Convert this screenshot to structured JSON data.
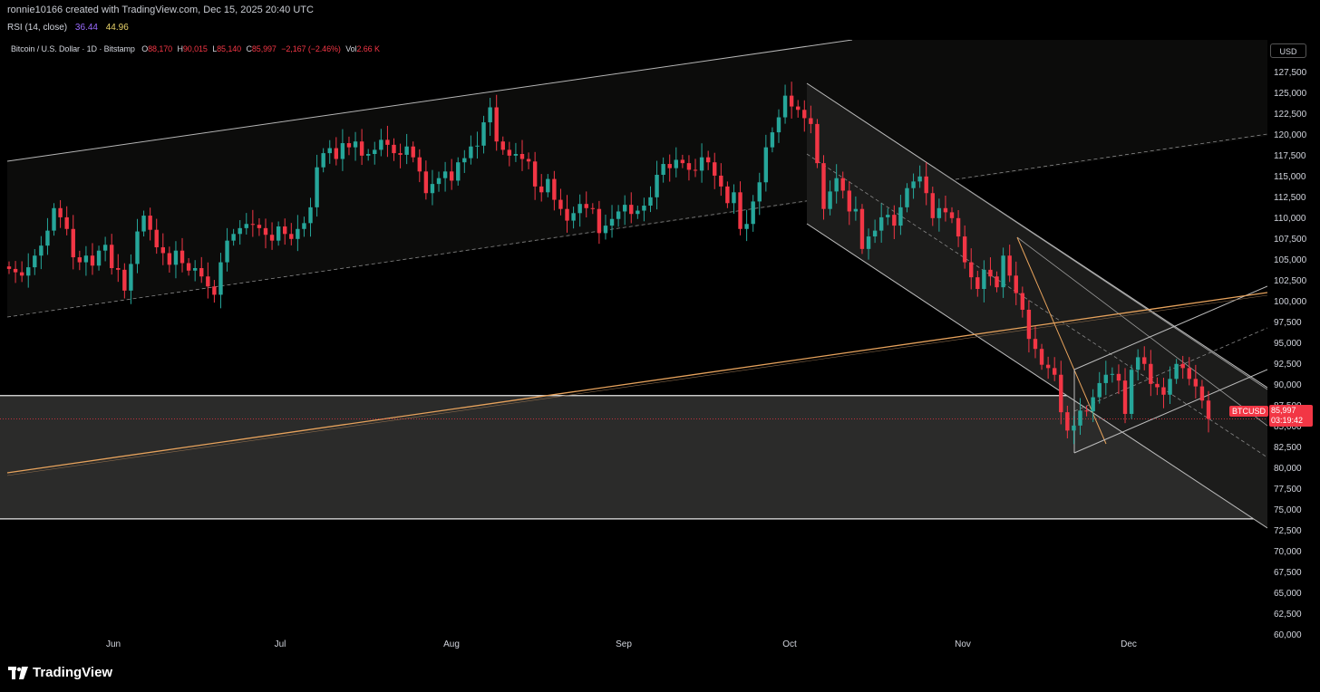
{
  "header": {
    "created_line": "ronnie10166 created with TradingView.com, Dec 15, 2025 20:40 UTC"
  },
  "rsi": {
    "label": "RSI (14, close)",
    "value1": "36.44",
    "value2": "44.96"
  },
  "legend": {
    "symbol": "Bitcoin / U.S. Dollar · 1D · Bitstamp",
    "o_label": "O",
    "o": "88,170",
    "h_label": "H",
    "h": "90,015",
    "l_label": "L",
    "l": "85,140",
    "c_label": "C",
    "c": "85,997",
    "change": "−2,167 (−2.46%)",
    "vol_label": "Vol",
    "vol": "2.66 K"
  },
  "currency_button": "USD",
  "price_tag": {
    "ticker": "BTCUSD",
    "price": "85,997",
    "countdown": "03:19:42"
  },
  "footer": {
    "brand": "TradingView"
  },
  "colors": {
    "up": "#26a69a",
    "down": "#f23645",
    "accent": "#e6a25c",
    "bg": "#000000"
  },
  "chart_data": {
    "type": "candlestick",
    "title": "Bitcoin / U.S. Dollar · 1D · Bitstamp",
    "x_ticks": [
      "Jun",
      "Jul",
      "Aug",
      "Sep",
      "Oct",
      "Nov",
      "Dec"
    ],
    "y_ticks": [
      60000,
      62500,
      65000,
      67500,
      70000,
      72500,
      75000,
      77500,
      80000,
      82500,
      85000,
      87500,
      90000,
      92500,
      95000,
      97500,
      100000,
      102500,
      105000,
      107500,
      110000,
      112500,
      115000,
      117500,
      120000,
      122500,
      125000,
      127500
    ],
    "y_tick_labels": [
      "60,000",
      "62,500",
      "65,000",
      "67,500",
      "70,000",
      "72,500",
      "75,000",
      "77,500",
      "80,000",
      "82,500",
      "85,000",
      "87,500",
      "90,000",
      "92,500",
      "95,000",
      "97,500",
      "100,000",
      "102,500",
      "105,000",
      "107,500",
      "110,000",
      "112,500",
      "115,000",
      "117,500",
      "120,000",
      "122,500",
      "125,000",
      "127,500"
    ],
    "ylim": [
      58000,
      131500
    ],
    "last_price": 85997,
    "closes": [
      104000,
      103600,
      103200,
      104200,
      105600,
      106800,
      108600,
      111300,
      110200,
      108800,
      105400,
      104800,
      105600,
      104400,
      106200,
      106900,
      104100,
      103900,
      101400,
      104600,
      108500,
      110400,
      108700,
      106600,
      105900,
      104500,
      106200,
      104700,
      103800,
      104100,
      103100,
      101900,
      100900,
      104800,
      107400,
      108200,
      108900,
      109400,
      109300,
      108900,
      108100,
      107400,
      109100,
      108200,
      107600,
      108800,
      109500,
      111400,
      116200,
      117900,
      118500,
      117200,
      119100,
      118600,
      119300,
      117600,
      117800,
      118300,
      119500,
      118900,
      117900,
      117700,
      118700,
      117400,
      115700,
      113100,
      114200,
      114900,
      115700,
      114600,
      116800,
      117300,
      118700,
      118800,
      121600,
      123400,
      119300,
      118300,
      117600,
      117800,
      117200,
      116900,
      113900,
      113200,
      114800,
      112300,
      111200,
      109800,
      110700,
      111800,
      111300,
      111200,
      108300,
      109200,
      110000,
      110900,
      111700,
      110600,
      111000,
      111600,
      112600,
      115300,
      116600,
      116100,
      117100,
      116700,
      115900,
      115800,
      117400,
      116800,
      115200,
      113900,
      111900,
      113200,
      108800,
      109400,
      112100,
      114400,
      118600,
      120400,
      122200,
      124800,
      123500,
      123100,
      122100,
      121400,
      116700,
      111200,
      113300,
      114900,
      113400,
      110900,
      111200,
      106400,
      107900,
      108600,
      110200,
      110500,
      109200,
      111400,
      113700,
      114500,
      115100,
      113100,
      110100,
      111300,
      110800,
      110100,
      107900,
      104800,
      103000,
      101600,
      103900,
      103100,
      101800,
      105600,
      103200,
      101100,
      99100,
      95600,
      94400,
      92500,
      92100,
      91300,
      86800,
      84600,
      85200,
      87000,
      86900,
      88600,
      90300,
      91300,
      91400,
      90600,
      86600,
      91900,
      93400,
      92600,
      90200,
      89800,
      88900,
      90800,
      92600,
      92100,
      90800,
      89900,
      88200,
      86000
    ]
  }
}
